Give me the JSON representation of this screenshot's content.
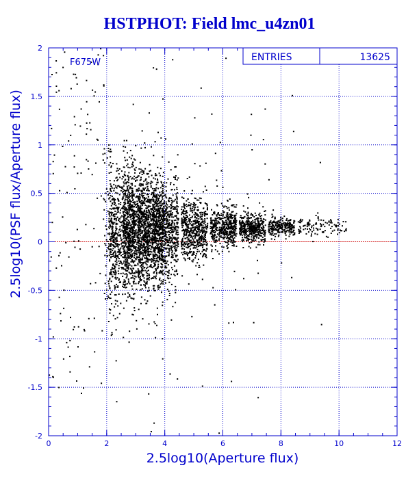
{
  "title": "HSTPHOT: Field lmc_u4zn01",
  "chart_data": {
    "type": "scatter",
    "title": "HSTPHOT: Field lmc_u4zn01",
    "xlabel": "2.5log10(Aperture flux)",
    "ylabel": "2.5log10(PSF flux/Aperture flux)",
    "xlim": [
      0,
      12
    ],
    "ylim": [
      -2,
      2
    ],
    "x_ticks": [
      0,
      2,
      4,
      6,
      8,
      10,
      12
    ],
    "y_ticks": [
      -2,
      -1.5,
      -1,
      -0.5,
      0,
      0.5,
      1,
      1.5,
      2
    ],
    "x_tick_labels": [
      "0",
      "2",
      "4",
      "6",
      "8",
      "10",
      "12"
    ],
    "y_tick_labels": [
      "-2",
      "-1.5",
      "-1",
      "-0.5",
      "0",
      "0.5",
      "1",
      "1.5",
      "2"
    ],
    "grid": true,
    "reference_line": {
      "y": 0,
      "color": "#cc0000"
    },
    "filter_label": "F675W",
    "stats": {
      "label": "ENTRIES",
      "value": "13625"
    },
    "entries": 13625,
    "point_color": "#000000",
    "axis_color": "#0000cc",
    "series": [
      {
        "density_profile": [
          {
            "x": 1.9,
            "y": 0.02,
            "spread": 0.45,
            "weight": 3
          },
          {
            "x": 2.5,
            "y": 0.1,
            "spread": 0.35,
            "weight": 8
          },
          {
            "x": 3.0,
            "y": 0.12,
            "spread": 0.3,
            "weight": 10
          },
          {
            "x": 3.5,
            "y": 0.12,
            "spread": 0.3,
            "weight": 10
          },
          {
            "x": 4.0,
            "y": 0.13,
            "spread": 0.25,
            "weight": 9
          },
          {
            "x": 5.0,
            "y": 0.14,
            "spread": 0.16,
            "weight": 7
          },
          {
            "x": 6.0,
            "y": 0.15,
            "spread": 0.1,
            "weight": 6
          },
          {
            "x": 7.0,
            "y": 0.15,
            "spread": 0.07,
            "weight": 5
          },
          {
            "x": 8.0,
            "y": 0.16,
            "spread": 0.05,
            "weight": 3
          },
          {
            "x": 9.0,
            "y": 0.16,
            "spread": 0.05,
            "weight": 1
          },
          {
            "x": 9.8,
            "y": 0.17,
            "spread": 0.04,
            "weight": 0.4
          }
        ]
      }
    ]
  }
}
